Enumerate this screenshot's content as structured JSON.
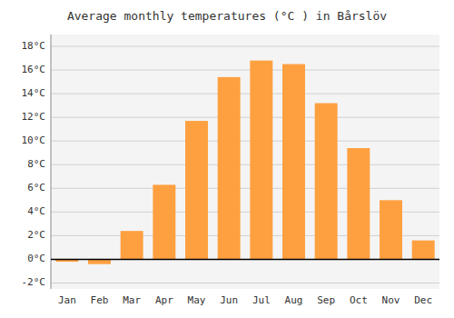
{
  "chart_data": {
    "type": "bar",
    "title": "Average monthly temperatures (°C ) in Bårslöv",
    "categories": [
      "Jan",
      "Feb",
      "Mar",
      "Apr",
      "May",
      "Jun",
      "Jul",
      "Aug",
      "Sep",
      "Oct",
      "Nov",
      "Dec"
    ],
    "values": [
      -0.2,
      -0.4,
      2.4,
      6.3,
      11.7,
      15.4,
      16.8,
      16.5,
      13.2,
      9.4,
      5.0,
      1.6
    ],
    "color": "#FFA040",
    "ylim": [
      -2.5,
      19
    ],
    "yticks": [
      {
        "value": -2,
        "label": "-2°C"
      },
      {
        "value": 0,
        "label": "0°C"
      },
      {
        "value": 2,
        "label": "2°C"
      },
      {
        "value": 4,
        "label": "4°C"
      },
      {
        "value": 6,
        "label": "6°C"
      },
      {
        "value": 8,
        "label": "8°C"
      },
      {
        "value": 10,
        "label": "10°C"
      },
      {
        "value": 12,
        "label": "12°C"
      },
      {
        "value": 14,
        "label": "14°C"
      },
      {
        "value": 16,
        "label": "16°C"
      },
      {
        "value": 18,
        "label": "18°C"
      }
    ],
    "grid": true
  }
}
